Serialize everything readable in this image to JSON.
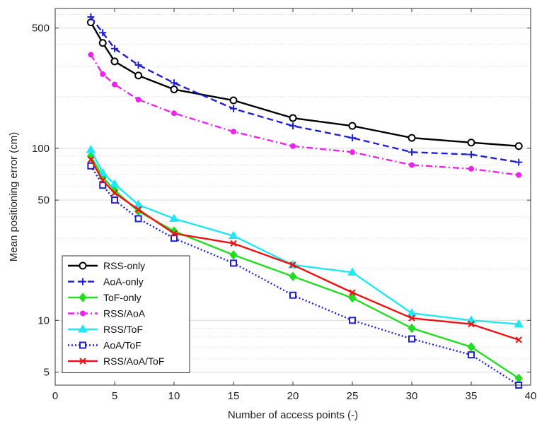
{
  "chart_data": {
    "type": "line",
    "title": "",
    "xlabel": "Number of access points (-)",
    "ylabel": "Mean positioning error (cm)",
    "xlim": [
      0,
      40
    ],
    "ylim": [
      4.2,
      650
    ],
    "yscale": "log",
    "grid": "horizontal-minor",
    "legend_position": "bottom-left",
    "x": [
      3,
      4,
      5,
      7,
      10,
      15,
      20,
      25,
      30,
      35,
      39
    ],
    "xticks": [
      "0",
      "5",
      "10",
      "15",
      "20",
      "25",
      "30",
      "35",
      "40"
    ],
    "xtick_values": [
      0,
      5,
      10,
      15,
      20,
      25,
      30,
      35,
      40
    ],
    "yticks": [
      "5",
      "10",
      "50",
      "100",
      "500"
    ],
    "ytick_values": [
      5,
      10,
      50,
      100,
      500
    ],
    "series": [
      {
        "name": "RSS-only",
        "color": "#000000",
        "style": "solid",
        "marker": "circle",
        "values": [
          540,
          410,
          320,
          265,
          220,
          190,
          150,
          135,
          115,
          108,
          103
        ]
      },
      {
        "name": "AoA-only",
        "color": "#1f1fd6",
        "style": "dashed",
        "marker": "plus",
        "values": [
          580,
          470,
          380,
          305,
          240,
          170,
          135,
          115,
          95,
          92,
          83
        ]
      },
      {
        "name": "ToF-only",
        "color": "#22dd22",
        "style": "solid",
        "marker": "diamond",
        "values": [
          90,
          68,
          57,
          43,
          33,
          24,
          18,
          13.5,
          9,
          7,
          4.6
        ]
      },
      {
        "name": "RSS/AoA",
        "color": "#ee22ee",
        "style": "dashdot",
        "marker": "dot",
        "values": [
          350,
          270,
          235,
          192,
          160,
          125,
          103,
          95,
          80,
          76,
          70
        ]
      },
      {
        "name": "RSS/ToF",
        "color": "#22e6f2",
        "style": "solid",
        "marker": "triangle",
        "values": [
          98,
          72,
          62,
          47,
          39,
          31,
          21,
          19,
          11,
          10,
          9.5
        ]
      },
      {
        "name": "AoA/ToF",
        "color": "#1f1fd6",
        "style": "dotted",
        "marker": "square",
        "values": [
          79,
          61,
          50,
          39,
          30,
          21.5,
          14,
          10,
          7.8,
          6.3,
          4.2
        ]
      },
      {
        "name": "RSS/AoA/ToF",
        "color": "#ee1111",
        "style": "solid",
        "marker": "x",
        "values": [
          86,
          65,
          55,
          44,
          32,
          28,
          21,
          14.5,
          10.3,
          9.5,
          7.7
        ]
      }
    ]
  }
}
